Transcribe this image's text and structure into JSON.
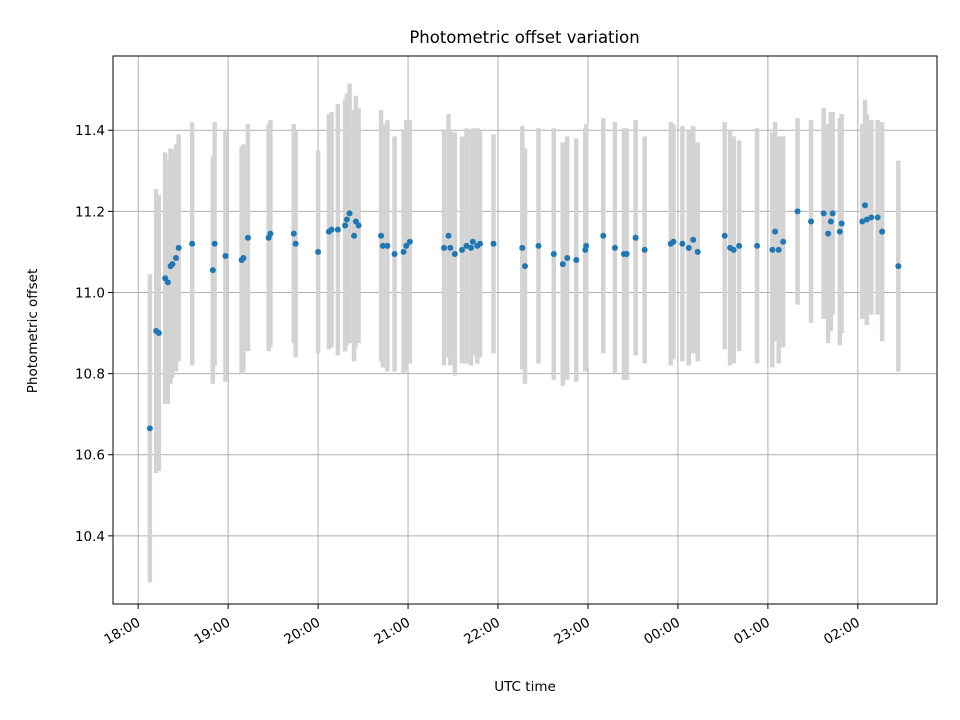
{
  "chart_data": {
    "type": "scatter",
    "title": "Photometric offset variation",
    "xlabel": "UTC time",
    "ylabel": "Photometric offset",
    "xlim": [
      17.72,
      26.88
    ],
    "ylim": [
      10.232,
      11.583
    ],
    "grid": true,
    "x_ticks": [
      {
        "value": 18,
        "label": "18:00"
      },
      {
        "value": 19,
        "label": "19:00"
      },
      {
        "value": 20,
        "label": "20:00"
      },
      {
        "value": 21,
        "label": "21:00"
      },
      {
        "value": 22,
        "label": "22:00"
      },
      {
        "value": 23,
        "label": "23:00"
      },
      {
        "value": 24,
        "label": "00:00"
      },
      {
        "value": 25,
        "label": "01:00"
      },
      {
        "value": 26,
        "label": "02:00"
      }
    ],
    "y_ticks": [
      {
        "value": 10.4,
        "label": "10.4"
      },
      {
        "value": 10.6,
        "label": "10.6"
      },
      {
        "value": 10.8,
        "label": "10.8"
      },
      {
        "value": 11.0,
        "label": "11.0"
      },
      {
        "value": 11.2,
        "label": "11.2"
      },
      {
        "value": 11.4,
        "label": "11.4"
      }
    ],
    "colors": {
      "points": "#1f77b4",
      "errorbars": "#d3d3d3",
      "grid": "#b0b0b0"
    },
    "series": [
      {
        "name": "offset",
        "x": [
          18.13,
          18.2,
          18.23,
          18.3,
          18.33,
          18.36,
          18.38,
          18.42,
          18.45,
          18.6,
          18.83,
          18.85,
          18.97,
          19.15,
          19.17,
          19.22,
          19.45,
          19.47,
          19.73,
          19.75,
          20.0,
          20.12,
          20.15,
          20.22,
          20.3,
          20.32,
          20.35,
          20.4,
          20.42,
          20.45,
          20.7,
          20.72,
          20.77,
          20.85,
          20.95,
          20.98,
          21.02,
          21.4,
          21.45,
          21.47,
          21.52,
          21.6,
          21.65,
          21.7,
          21.72,
          21.77,
          21.8,
          21.95,
          22.27,
          22.3,
          22.45,
          22.62,
          22.72,
          22.77,
          22.87,
          22.97,
          22.98,
          23.17,
          23.3,
          23.4,
          23.43,
          23.53,
          23.63,
          23.92,
          23.95,
          24.05,
          24.12,
          24.17,
          24.22,
          24.52,
          24.58,
          24.62,
          24.68,
          24.88,
          25.05,
          25.08,
          25.12,
          25.17,
          25.33,
          25.48,
          25.62,
          25.67,
          25.7,
          25.72,
          25.8,
          25.82,
          26.05,
          26.08,
          26.1,
          26.15,
          26.22,
          26.27,
          26.45
        ],
        "y": [
          10.665,
          10.905,
          10.9,
          11.035,
          11.025,
          11.065,
          11.07,
          11.085,
          11.11,
          11.12,
          11.055,
          11.12,
          11.09,
          11.08,
          11.085,
          11.135,
          11.135,
          11.145,
          11.145,
          11.12,
          11.1,
          11.15,
          11.155,
          11.155,
          11.165,
          11.18,
          11.195,
          11.14,
          11.175,
          11.165,
          11.14,
          11.115,
          11.115,
          11.095,
          11.1,
          11.115,
          11.125,
          11.11,
          11.14,
          11.11,
          11.095,
          11.105,
          11.115,
          11.11,
          11.125,
          11.115,
          11.12,
          11.12,
          11.11,
          11.065,
          11.115,
          11.095,
          11.07,
          11.085,
          11.08,
          11.105,
          11.115,
          11.14,
          11.11,
          11.095,
          11.095,
          11.135,
          11.105,
          11.12,
          11.125,
          11.12,
          11.11,
          11.13,
          11.1,
          11.14,
          11.11,
          11.105,
          11.115,
          11.115,
          11.105,
          11.15,
          11.105,
          11.125,
          11.2,
          11.175,
          11.195,
          11.145,
          11.175,
          11.195,
          11.15,
          11.17,
          11.175,
          11.215,
          11.18,
          11.185,
          11.185,
          11.15,
          11.065
        ],
        "err": [
          0.38,
          0.35,
          0.34,
          0.31,
          0.3,
          0.29,
          0.28,
          0.28,
          0.28,
          0.3,
          0.28,
          0.3,
          0.31,
          0.28,
          0.28,
          0.28,
          0.28,
          0.28,
          0.27,
          0.28,
          0.25,
          0.29,
          0.29,
          0.31,
          0.31,
          0.31,
          0.32,
          0.31,
          0.31,
          0.29,
          0.31,
          0.3,
          0.31,
          0.29,
          0.3,
          0.31,
          0.3,
          0.29,
          0.3,
          0.29,
          0.3,
          0.28,
          0.29,
          0.29,
          0.28,
          0.29,
          0.28,
          0.27,
          0.3,
          0.29,
          0.29,
          0.31,
          0.3,
          0.3,
          0.3,
          0.3,
          0.3,
          0.29,
          0.31,
          0.31,
          0.31,
          0.29,
          0.28,
          0.3,
          0.29,
          0.29,
          0.29,
          0.28,
          0.27,
          0.28,
          0.29,
          0.28,
          0.26,
          0.29,
          0.29,
          0.27,
          0.28,
          0.26,
          0.23,
          0.25,
          0.26,
          0.27,
          0.27,
          0.25,
          0.28,
          0.27,
          0.24,
          0.26,
          0.26,
          0.24,
          0.24,
          0.27,
          0.26
        ]
      }
    ]
  }
}
